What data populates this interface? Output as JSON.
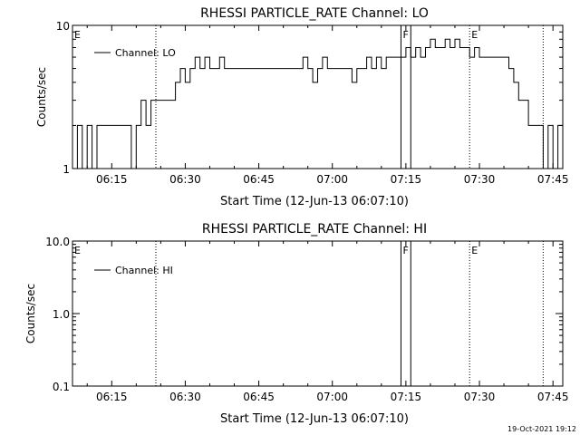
{
  "footer": {
    "timestamp": "19-Oct-2021 19:12"
  },
  "chart_data": [
    {
      "type": "line",
      "title": "RHESSI PARTICLE_RATE Channel: LO",
      "xlabel": "Start Time (12-Jun-13 06:07:10)",
      "ylabel": "Counts/sec",
      "yscale": "log",
      "ylim": [
        1,
        10
      ],
      "ytick_labels": [
        "1",
        "10"
      ],
      "xlim": [
        "06:07",
        "07:47"
      ],
      "xtick_labels": [
        "06:15",
        "06:30",
        "06:45",
        "07:00",
        "07:15",
        "07:30",
        "07:45"
      ],
      "legend": {
        "placement": "top-left",
        "entries": [
          "Channel: LO"
        ]
      },
      "series": [
        {
          "name": "Channel: LO",
          "x_minutes_label": "minutes after 06:07",
          "x": [
            0,
            1,
            2,
            3,
            4,
            5,
            6,
            7,
            8,
            9,
            10,
            11,
            12,
            13,
            14,
            15,
            16,
            17,
            18,
            19,
            20,
            21,
            22,
            23,
            24,
            25,
            26,
            27,
            28,
            29,
            30,
            31,
            32,
            33,
            34,
            35,
            36,
            37,
            38,
            39,
            40,
            41,
            42,
            43,
            44,
            45,
            46,
            47,
            48,
            49,
            50,
            51,
            52,
            53,
            54,
            55,
            56,
            57,
            58,
            59,
            60,
            61,
            62,
            63,
            64,
            65,
            66,
            67,
            68,
            69,
            70,
            71,
            72,
            73,
            74,
            75,
            76,
            77,
            78,
            79,
            80,
            81,
            82,
            83,
            84,
            85,
            86,
            87,
            88,
            89,
            90,
            91,
            92,
            93,
            94,
            95,
            96,
            97,
            98,
            99
          ],
          "y": [
            1,
            2,
            1,
            2,
            1,
            2,
            2,
            2,
            2,
            2,
            2,
            2,
            1,
            2,
            3,
            2,
            3,
            3,
            3,
            3,
            3,
            4,
            5,
            4,
            5,
            6,
            5,
            6,
            5,
            5,
            6,
            5,
            5,
            5,
            5,
            5,
            5,
            5,
            5,
            5,
            5,
            5,
            5,
            5,
            5,
            5,
            5,
            6,
            5,
            4,
            5,
            6,
            5,
            5,
            5,
            5,
            5,
            4,
            5,
            5,
            6,
            5,
            6,
            5,
            6,
            6,
            6,
            6,
            7,
            6,
            7,
            6,
            7,
            8,
            7,
            7,
            8,
            7,
            8,
            7,
            7,
            6,
            7,
            6,
            6,
            6,
            6,
            6,
            6,
            5,
            4,
            3,
            3,
            2,
            2,
            2,
            1,
            2,
            1,
            2
          ]
        }
      ],
      "vertical_markers": [
        {
          "label": "E",
          "time": "06:07",
          "style": "dotted"
        },
        {
          "label": "",
          "time": "06:24",
          "style": "dotted"
        },
        {
          "label": "F",
          "time": "07:14",
          "style": "solid"
        },
        {
          "label": "",
          "time": "07:16",
          "style": "solid"
        },
        {
          "label": "E",
          "time": "07:28",
          "style": "dotted"
        },
        {
          "label": "",
          "time": "07:43",
          "style": "dotted"
        }
      ]
    },
    {
      "type": "line",
      "title": "RHESSI PARTICLE_RATE Channel: HI",
      "xlabel": "Start Time (12-Jun-13 06:07:10)",
      "ylabel": "Counts/sec",
      "yscale": "log",
      "ylim": [
        0.1,
        10
      ],
      "ytick_labels": [
        "0.1",
        "1.0",
        "10.0"
      ],
      "xlim": [
        "06:07",
        "07:47"
      ],
      "xtick_labels": [
        "06:15",
        "06:30",
        "06:45",
        "07:00",
        "07:15",
        "07:30",
        "07:45"
      ],
      "legend": {
        "placement": "top-left",
        "entries": [
          "Channel: HI"
        ]
      },
      "series": [
        {
          "name": "Channel: HI",
          "x": [],
          "y": []
        }
      ],
      "vertical_markers": [
        {
          "label": "E",
          "time": "06:07",
          "style": "dotted"
        },
        {
          "label": "",
          "time": "06:24",
          "style": "dotted"
        },
        {
          "label": "F",
          "time": "07:14",
          "style": "solid"
        },
        {
          "label": "",
          "time": "07:16",
          "style": "solid"
        },
        {
          "label": "E",
          "time": "07:28",
          "style": "dotted"
        },
        {
          "label": "",
          "time": "07:43",
          "style": "dotted"
        }
      ]
    }
  ]
}
